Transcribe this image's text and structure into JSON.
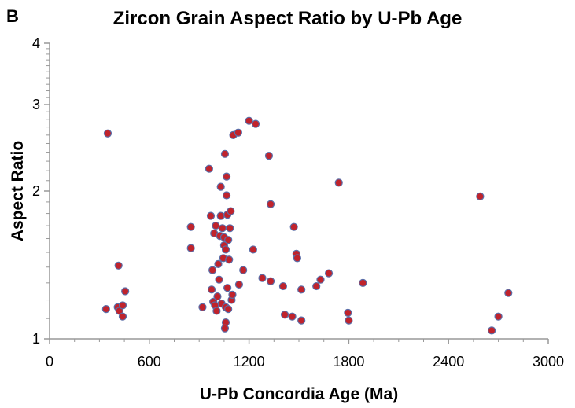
{
  "panel_label": "B",
  "chart_data": {
    "type": "scatter",
    "title": "Zircon Grain Aspect Ratio by U-Pb Age",
    "xlabel": "U-Pb Concordia Age (Ma)",
    "ylabel": "Aspect Ratio",
    "xlim": [
      0,
      3000
    ],
    "ylim": [
      1,
      4
    ],
    "yscale": "log",
    "xticks": [
      "0",
      "600",
      "1200",
      "1800",
      "2400",
      "3000"
    ],
    "yticks": [
      "1",
      "2",
      "3",
      "4"
    ],
    "grid": false,
    "legend": "none",
    "marker_fill": "#c0232c",
    "marker_edge": "#5b6ea8",
    "points": [
      [
        350,
        2.62
      ],
      [
        340,
        1.15
      ],
      [
        410,
        1.16
      ],
      [
        420,
        1.14
      ],
      [
        440,
        1.17
      ],
      [
        440,
        1.11
      ],
      [
        455,
        1.25
      ],
      [
        415,
        1.41
      ],
      [
        850,
        1.69
      ],
      [
        850,
        1.53
      ],
      [
        920,
        1.16
      ],
      [
        960,
        2.22
      ],
      [
        970,
        1.78
      ],
      [
        975,
        1.26
      ],
      [
        980,
        1.38
      ],
      [
        985,
        1.19
      ],
      [
        990,
        1.64
      ],
      [
        995,
        1.17
      ],
      [
        1000,
        1.7
      ],
      [
        1005,
        1.14
      ],
      [
        1010,
        1.22
      ],
      [
        1015,
        1.42
      ],
      [
        1020,
        1.32
      ],
      [
        1025,
        1.62
      ],
      [
        1030,
        1.78
      ],
      [
        1035,
        1.18
      ],
      [
        1030,
        2.04
      ],
      [
        1040,
        1.68
      ],
      [
        1045,
        1.46
      ],
      [
        1050,
        1.55
      ],
      [
        1050,
        1.61
      ],
      [
        1055,
        2.38
      ],
      [
        1060,
        1.52
      ],
      [
        1060,
        1.16
      ],
      [
        1060,
        1.08
      ],
      [
        1055,
        1.05
      ],
      [
        1065,
        2.14
      ],
      [
        1065,
        1.96
      ],
      [
        1070,
        1.79
      ],
      [
        1070,
        1.27
      ],
      [
        1075,
        1.15
      ],
      [
        1075,
        1.59
      ],
      [
        1080,
        1.45
      ],
      [
        1085,
        1.68
      ],
      [
        1090,
        1.82
      ],
      [
        1095,
        1.2
      ],
      [
        1100,
        1.23
      ],
      [
        1105,
        2.6
      ],
      [
        1135,
        2.63
      ],
      [
        1140,
        1.29
      ],
      [
        1165,
        1.38
      ],
      [
        1200,
        2.78
      ],
      [
        1225,
        1.52
      ],
      [
        1240,
        2.74
      ],
      [
        1280,
        1.33
      ],
      [
        1320,
        2.36
      ],
      [
        1330,
        1.88
      ],
      [
        1330,
        1.31
      ],
      [
        1405,
        1.28
      ],
      [
        1415,
        1.12
      ],
      [
        1470,
        1.69
      ],
      [
        1485,
        1.49
      ],
      [
        1490,
        1.46
      ],
      [
        1460,
        1.11
      ],
      [
        1515,
        1.26
      ],
      [
        1515,
        1.09
      ],
      [
        1605,
        1.28
      ],
      [
        1630,
        1.32
      ],
      [
        1680,
        1.36
      ],
      [
        1740,
        2.08
      ],
      [
        1795,
        1.13
      ],
      [
        1800,
        1.09
      ],
      [
        1885,
        1.3
      ],
      [
        2590,
        1.95
      ],
      [
        2660,
        1.04
      ],
      [
        2700,
        1.11
      ],
      [
        2760,
        1.24
      ]
    ]
  }
}
